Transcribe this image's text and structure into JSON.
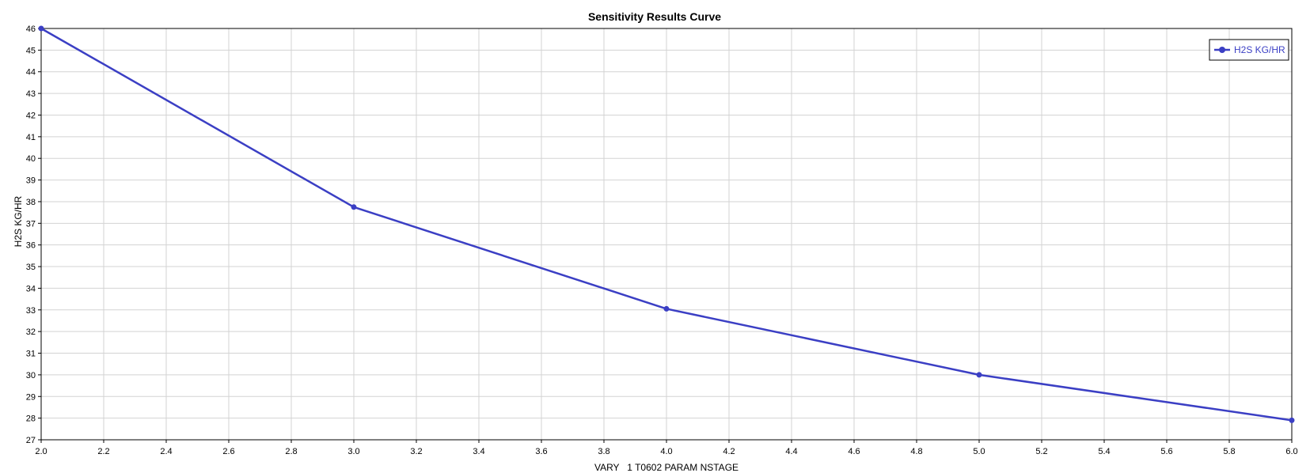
{
  "chart_data": {
    "type": "line",
    "title": "Sensitivity Results Curve",
    "xlabel": "VARY   1 T0602 PARAM NSTAGE",
    "ylabel": "H2S KG/HR",
    "xlim": [
      2.0,
      6.0
    ],
    "ylim": [
      27,
      46
    ],
    "x_ticks": [
      "2.0",
      "2.2",
      "2.4",
      "2.6",
      "2.8",
      "3.0",
      "3.2",
      "3.4",
      "3.6",
      "3.8",
      "4.0",
      "4.2",
      "4.4",
      "4.6",
      "4.8",
      "5.0",
      "5.2",
      "5.4",
      "5.6",
      "5.8",
      "6.0"
    ],
    "y_ticks": [
      "27",
      "28",
      "29",
      "30",
      "31",
      "32",
      "33",
      "34",
      "35",
      "36",
      "37",
      "38",
      "39",
      "40",
      "41",
      "42",
      "43",
      "44",
      "45",
      "46"
    ],
    "grid": true,
    "legend_position": "top-right",
    "series": [
      {
        "name": "H2S KG/HR",
        "color": "#3b3fc4",
        "x": [
          2.0,
          3.0,
          4.0,
          5.0,
          6.0
        ],
        "y": [
          46.0,
          37.75,
          33.05,
          30.0,
          27.9
        ]
      }
    ]
  }
}
